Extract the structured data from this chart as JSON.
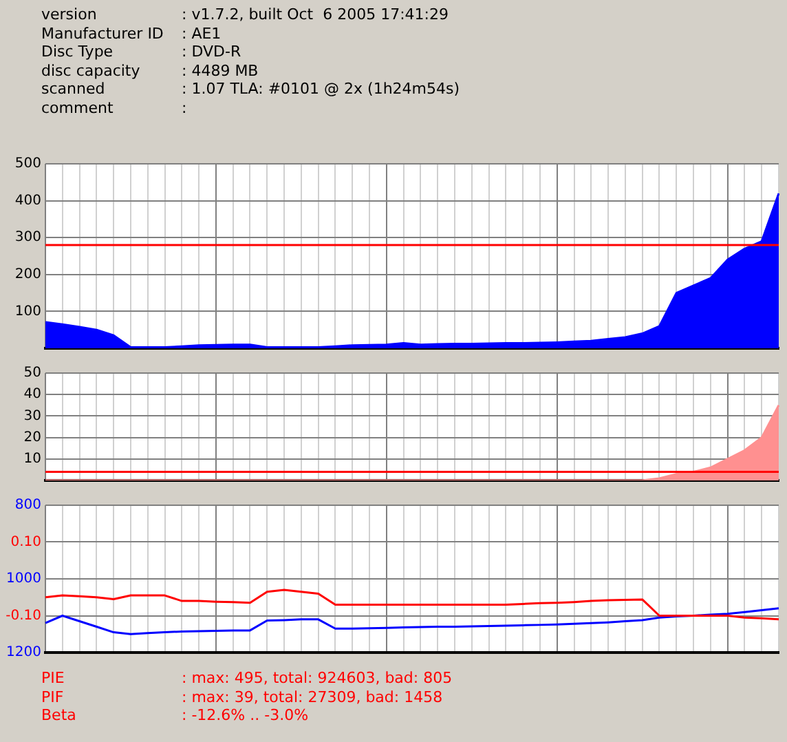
{
  "chart_data": [
    {
      "type": "area",
      "annotations": [
        "version : v1.7.2, built Oct  6 2005 17:41:29",
        "Manufacturer ID : AE1",
        "Disc Type : DVD-R",
        "disc capacity : 4489 MB",
        "scanned : 1.07 TLA: #0101 @ 2x (1h24m54s)",
        "comment : "
      ],
      "categories": [
        null,
        null,
        null,
        null,
        null,
        null,
        null,
        null,
        null,
        null,
        null,
        null,
        null,
        null,
        null,
        null,
        null,
        null,
        null,
        null,
        null,
        null,
        null,
        null,
        null,
        null,
        null,
        null,
        null,
        null,
        null,
        null,
        null,
        null,
        null,
        null,
        null,
        null,
        null,
        null,
        null,
        null,
        null,
        null
      ],
      "series": [
        {
          "color": "#0000ff",
          "values": [
            71,
            65,
            58,
            50,
            35,
            3,
            3,
            3,
            5,
            8,
            9,
            10,
            10,
            3,
            3,
            3,
            3,
            5,
            8,
            9,
            10,
            14,
            10,
            11,
            12,
            12,
            13,
            14,
            14,
            15,
            16,
            18,
            20,
            25,
            30,
            40,
            60,
            150,
            170,
            190,
            240,
            270,
            290,
            420
          ]
        }
      ],
      "ylim": [
        0,
        500
      ],
      "yticks": [
        100,
        200,
        300,
        400,
        500
      ],
      "ref_lines": [
        {
          "axis": "y",
          "value": 280,
          "color": "#ff0000"
        }
      ],
      "tick_labels": "y",
      "grid": true,
      "legend": false,
      "marker": "none"
    },
    {
      "type": "area",
      "categories": [
        null,
        null,
        null,
        null,
        null,
        null,
        null,
        null,
        null,
        null,
        null,
        null,
        null,
        null,
        null,
        null,
        null,
        null,
        null,
        null,
        null,
        null,
        null,
        null,
        null,
        null,
        null,
        null,
        null,
        null,
        null,
        null,
        null,
        null,
        null,
        null,
        null,
        null,
        null,
        null,
        null,
        null,
        null,
        null
      ],
      "series": [
        {
          "color": "#ff9090",
          "values": [
            0,
            0,
            0,
            0,
            0,
            0,
            0,
            0,
            0,
            0,
            0,
            0,
            0,
            0,
            0,
            0,
            0,
            0,
            0,
            0,
            0,
            0,
            0,
            0,
            0,
            0,
            0,
            0,
            0,
            0,
            0,
            0,
            0,
            0,
            0,
            0,
            1,
            3,
            4,
            6,
            10,
            14,
            20,
            35
          ]
        }
      ],
      "ylim": [
        0,
        50
      ],
      "yticks": [
        10,
        20,
        30,
        40,
        50
      ],
      "ref_lines": [
        {
          "axis": "y",
          "value": 4,
          "color": "#ff0000"
        }
      ],
      "tick_labels": "y",
      "grid": true,
      "legend": false,
      "marker": "none"
    },
    {
      "type": "line",
      "annotations": [
        "PIE : max: 495, total: 924603, bad: 805",
        "PIF : max: 39, total: 27309, bad: 1458",
        "Beta : -12.6% .. -3.0%"
      ],
      "categories": [
        null,
        null,
        null,
        null,
        null,
        null,
        null,
        null,
        null,
        null,
        null,
        null,
        null,
        null,
        null,
        null,
        null,
        null,
        null,
        null,
        null,
        null,
        null,
        null,
        null,
        null,
        null,
        null,
        null,
        null,
        null,
        null,
        null,
        null,
        null,
        null,
        null,
        null,
        null,
        null,
        null,
        null,
        null,
        null
      ],
      "series": [
        {
          "color": "#ff0000",
          "values": [
            -0.05,
            -0.045,
            -0.047,
            -0.05,
            -0.055,
            -0.045,
            -0.045,
            -0.045,
            -0.06,
            -0.06,
            -0.062,
            -0.063,
            -0.065,
            -0.035,
            -0.03,
            -0.035,
            -0.04,
            -0.07,
            -0.07,
            -0.07,
            -0.07,
            -0.07,
            -0.07,
            -0.07,
            -0.07,
            -0.07,
            -0.07,
            -0.07,
            -0.068,
            -0.066,
            -0.065,
            -0.063,
            -0.06,
            -0.058,
            -0.057,
            -0.056,
            -0.1,
            -0.1,
            -0.1,
            -0.1,
            -0.1,
            -0.105,
            -0.107,
            -0.11
          ]
        },
        {
          "color": "#0000ff",
          "axis": "y2",
          "values": [
            1120,
            1100,
            1115,
            1130,
            1145,
            1150,
            1147,
            1145,
            1143,
            1142,
            1141,
            1140,
            1140,
            1113,
            1112,
            1110,
            1110,
            1135,
            1135,
            1134,
            1133,
            1132,
            1131,
            1130,
            1130,
            1129,
            1128,
            1127,
            1126,
            1125,
            1124,
            1122,
            1120,
            1118,
            1115,
            1112,
            1105,
            1102,
            1100,
            1097,
            1095,
            1090,
            1085,
            1080
          ]
        }
      ],
      "ylim": [
        -0.2,
        0.2
      ],
      "yticks": [
        {
          "value": -0.1,
          "label": "-0.10"
        },
        {
          "value": 0.1,
          "label": "0.10"
        }
      ],
      "y2lim": [
        1200,
        800
      ],
      "y2ticks": [
        800,
        1000,
        1200
      ],
      "tick_labels": "y",
      "grid": true,
      "legend": false,
      "marker": "none"
    }
  ]
}
